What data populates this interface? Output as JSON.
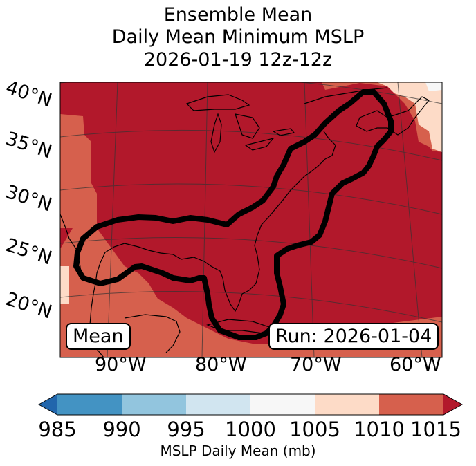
{
  "title": {
    "line1": "Ensemble Mean",
    "line2": "Daily Mean Minimum MSLP",
    "line3": "2026-01-19 12z-12z"
  },
  "map": {
    "lat_labels": [
      "40°N",
      "35°N",
      "30°N",
      "25°N",
      "20°N"
    ],
    "lon_labels": [
      "90°W",
      "80°W",
      "70°W",
      "60°W"
    ],
    "left_box": "Mean",
    "right_box": "Run: 2026-01-04"
  },
  "colorbar": {
    "ticks": [
      "985",
      "990",
      "995",
      "1000",
      "1005",
      "1010",
      "1015"
    ],
    "label": "MSLP Daily Mean (mb)",
    "colors": [
      "#2166ac",
      "#4393c3",
      "#92c5de",
      "#d1e5f0",
      "#f7f7f7",
      "#fddbc7",
      "#d6604d",
      "#b2182b"
    ]
  }
}
